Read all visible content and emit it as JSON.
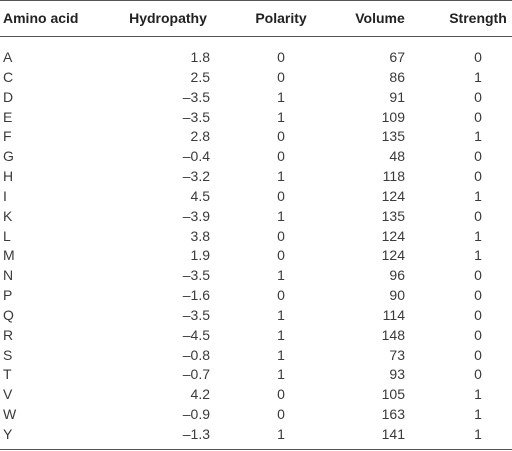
{
  "table": {
    "header": [
      "Amino acid",
      "Hydropathy",
      "Polarity",
      "Volume",
      "Strength"
    ],
    "rows": [
      [
        "A",
        "1.8",
        "0",
        "67",
        "0"
      ],
      [
        "C",
        "2.5",
        "0",
        "86",
        "1"
      ],
      [
        "D",
        "–3.5",
        "1",
        "91",
        "0"
      ],
      [
        "E",
        "–3.5",
        "1",
        "109",
        "0"
      ],
      [
        "F",
        "2.8",
        "0",
        "135",
        "1"
      ],
      [
        "G",
        "–0.4",
        "0",
        "48",
        "0"
      ],
      [
        "H",
        "–3.2",
        "1",
        "118",
        "0"
      ],
      [
        "I",
        "4.5",
        "0",
        "124",
        "1"
      ],
      [
        "K",
        "–3.9",
        "1",
        "135",
        "0"
      ],
      [
        "L",
        "3.8",
        "0",
        "124",
        "1"
      ],
      [
        "M",
        "1.9",
        "0",
        "124",
        "1"
      ],
      [
        "N",
        "–3.5",
        "1",
        "96",
        "0"
      ],
      [
        "P",
        "–1.6",
        "0",
        "90",
        "0"
      ],
      [
        "Q",
        "–3.5",
        "1",
        "114",
        "0"
      ],
      [
        "R",
        "–4.5",
        "1",
        "148",
        "0"
      ],
      [
        "S",
        "–0.8",
        "1",
        "73",
        "0"
      ],
      [
        "T",
        "–0.7",
        "1",
        "93",
        "0"
      ],
      [
        "V",
        "4.2",
        "0",
        "105",
        "1"
      ],
      [
        "W",
        "–0.9",
        "0",
        "163",
        "1"
      ],
      [
        "Y",
        "–1.3",
        "1",
        "141",
        "1"
      ]
    ]
  }
}
